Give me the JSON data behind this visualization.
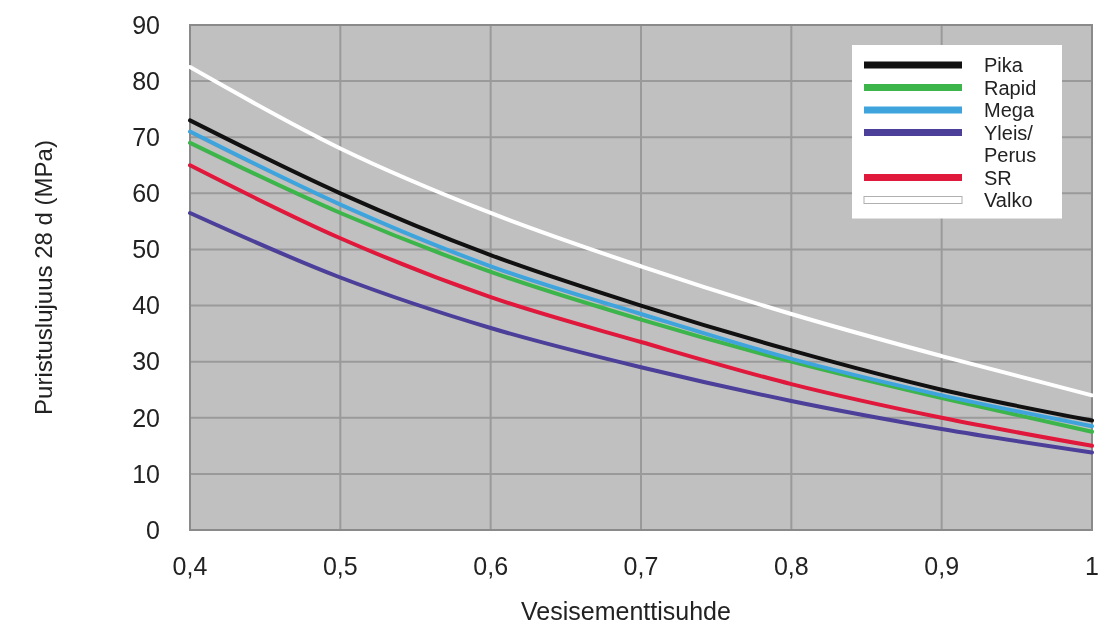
{
  "chart_data": {
    "type": "line",
    "xlabel": "Vesisementtisuhde",
    "ylabel": "Puristuslujuus 28 d (MPa)",
    "x": [
      0.4,
      0.5,
      0.6,
      0.7,
      0.8,
      0.9,
      1.0
    ],
    "xlim": [
      0.4,
      1.0
    ],
    "xticks": [
      {
        "value": 0.4,
        "label": "0,4"
      },
      {
        "value": 0.5,
        "label": "0,5"
      },
      {
        "value": 0.6,
        "label": "0,6"
      },
      {
        "value": 0.7,
        "label": "0,7"
      },
      {
        "value": 0.8,
        "label": "0,8"
      },
      {
        "value": 0.9,
        "label": "0,9"
      },
      1
    ],
    "ylim": [
      0,
      90
    ],
    "yticks": [
      0,
      10,
      20,
      30,
      40,
      50,
      60,
      70,
      80,
      90
    ],
    "grid": true,
    "legend": "top right",
    "marker": "none",
    "line_style": "solid",
    "series": [
      {
        "name": "Pika",
        "color": "#111111",
        "values": [
          73,
          60,
          49,
          40,
          32,
          25,
          19.5
        ]
      },
      {
        "name": "Rapid",
        "color": "#3cb54a",
        "values": [
          69,
          56.5,
          46,
          37.5,
          30,
          23.5,
          17.5
        ]
      },
      {
        "name": "Mega",
        "color": "#3fa3dc",
        "values": [
          71,
          58,
          47,
          38.5,
          30.5,
          24,
          18.5
        ]
      },
      {
        "name": "Yleis/ Perus",
        "color": "#4b3f9a",
        "values": [
          56.5,
          45,
          36,
          29,
          23,
          18,
          13.8
        ]
      },
      {
        "name": "SR",
        "color": "#e0183c",
        "values": [
          65,
          52,
          41.5,
          33.5,
          26,
          20,
          15
        ]
      },
      {
        "name": "Valko",
        "color": "#ffffff",
        "values": [
          82.5,
          68,
          56.5,
          47,
          38.5,
          31,
          24
        ]
      }
    ]
  }
}
